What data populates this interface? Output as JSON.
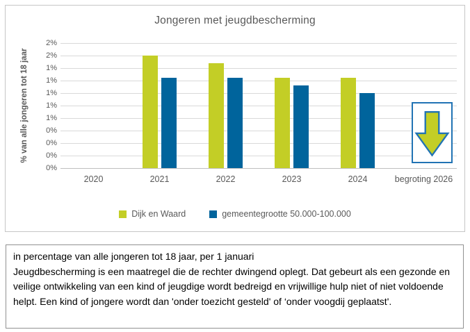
{
  "chart": {
    "title": "Jongeren met jeugdbescherming",
    "y_axis_title": "% van alle jongeren tot 18 jaar"
  },
  "chart_data": {
    "type": "bar",
    "title": "Jongeren met jeugdbescherming",
    "xlabel": "",
    "ylabel": "% van alle jongeren tot 18 jaar",
    "categories": [
      "2020",
      "2021",
      "2022",
      "2023",
      "2024",
      "begroting 2026"
    ],
    "series": [
      {
        "name": "Dijk en Waard",
        "color": "#C3CE26",
        "values": [
          null,
          1.5,
          1.4,
          1.2,
          1.2,
          null
        ]
      },
      {
        "name": "gemeentegrootte 50.000-100.000",
        "color": "#00649C",
        "values": [
          null,
          1.2,
          1.2,
          1.1,
          1.0,
          null
        ]
      }
    ],
    "ylim": [
      0,
      1.667
    ],
    "y_tick_labels_top_to_bottom": [
      "2%",
      "2%",
      "1%",
      "1%",
      "1%",
      "1%",
      "1%",
      "0%",
      "0%",
      "0%",
      "0%"
    ],
    "grid": true,
    "legend_position": "bottom",
    "annotations": [
      {
        "category": "begroting 2026",
        "icon": "down-arrow",
        "meaning": "verwachte daling (begroting 2026)"
      }
    ]
  },
  "legend": {
    "items": [
      {
        "label": "Dijk en Waard",
        "color": "#C3CE26"
      },
      {
        "label": "gemeentegrootte 50.000-100.000",
        "color": "#00649C"
      }
    ]
  },
  "footnote": {
    "line1": "in percentage van alle jongeren tot 18 jaar, per 1 januari",
    "body": "Jeugdbescherming is een maatregel die de rechter dwingend oplegt. Dat gebeurt als een gezonde en veilige ontwikkeling van een kind of jeugdige wordt bedreigd en vrijwillige hulp niet of niet voldoende helpt. Een kind of jongere wordt dan 'onder toezicht gesteld' of ‘onder voogdij geplaatst'."
  },
  "colors": {
    "series_green": "#C3CE26",
    "series_blue": "#00649C",
    "arrow_border_blue": "#2173B4",
    "text_gray": "#595959",
    "gridline": "#D9D9D9"
  }
}
